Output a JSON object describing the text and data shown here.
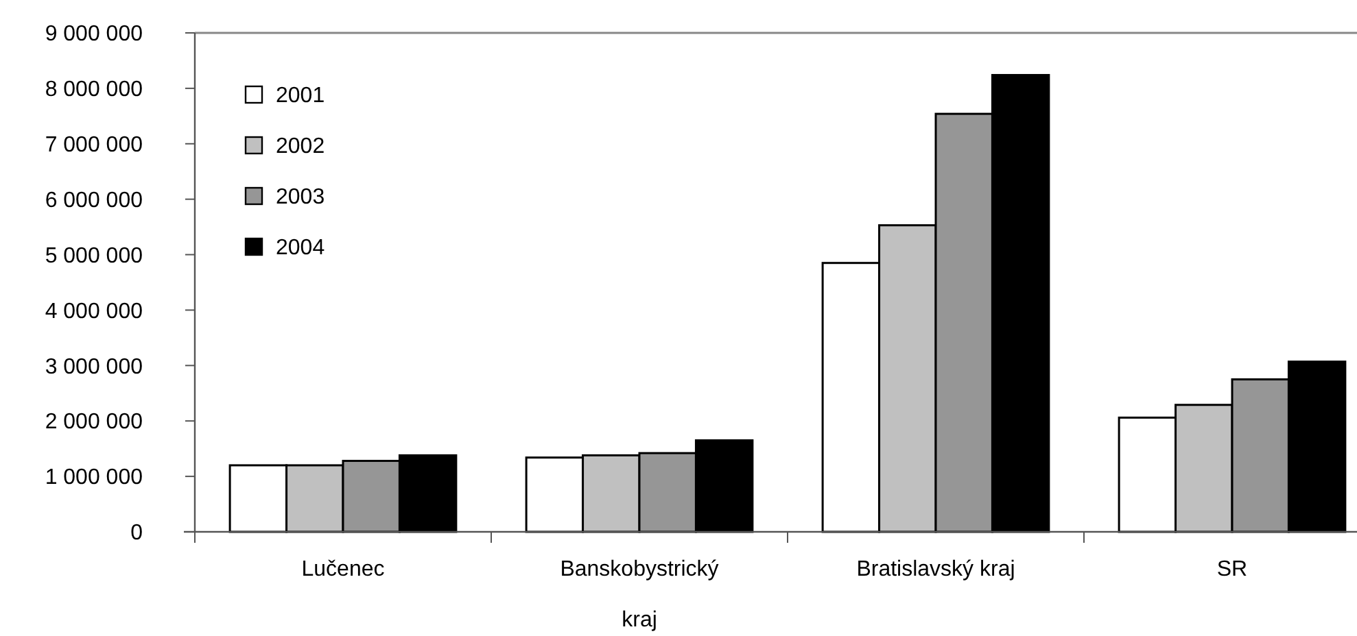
{
  "chart_data": {
    "type": "bar",
    "categories": [
      "Lučenec",
      "Banskobystrický kraj",
      "Bratislavský kraj",
      "SR"
    ],
    "series": [
      {
        "name": "2001",
        "color": "#ffffff",
        "values": [
          1200000,
          1340000,
          4850000,
          2060000
        ]
      },
      {
        "name": "2002",
        "color": "#c0c0c0",
        "values": [
          1200000,
          1380000,
          5530000,
          2290000
        ]
      },
      {
        "name": "2003",
        "color": "#969696",
        "values": [
          1280000,
          1420000,
          7540000,
          2750000
        ]
      },
      {
        "name": "2004",
        "color": "#000000",
        "values": [
          1380000,
          1650000,
          8240000,
          3070000
        ]
      }
    ],
    "ylim": [
      0,
      9000000
    ],
    "yticks": [
      {
        "value": 0,
        "label": "0"
      },
      {
        "value": 1000000,
        "label": "1 000 000"
      },
      {
        "value": 2000000,
        "label": "2 000 000"
      },
      {
        "value": 3000000,
        "label": "3 000 000"
      },
      {
        "value": 4000000,
        "label": "4 000 000"
      },
      {
        "value": 5000000,
        "label": "5 000 000"
      },
      {
        "value": 6000000,
        "label": "6 000 000"
      },
      {
        "value": 7000000,
        "label": "7 000 000"
      },
      {
        "value": 8000000,
        "label": "8 000 000"
      },
      {
        "value": 9000000,
        "label": "9 000 000"
      }
    ],
    "grid": false,
    "legend": "top left"
  }
}
